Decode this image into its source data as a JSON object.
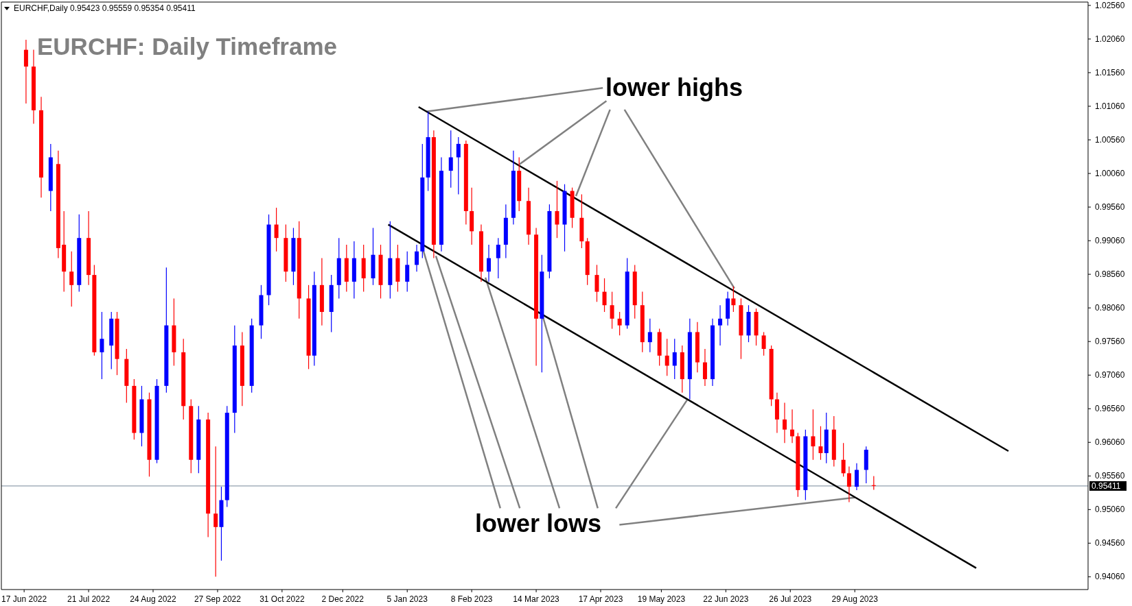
{
  "chart_data": {
    "type": "candlestick",
    "title": "EURCHF: Daily Timeframe",
    "annotations": [
      "EURCHF,Daily 0.95423 0.95559 0.95354 0.95411",
      {
        "text": "lower highs",
        "x": "2023-01-15",
        "y": 1.0098
      },
      {
        "text": "lower lows",
        "x": "2023-08-29",
        "y": 0.9524
      }
    ],
    "colors": [
      "#ff0000",
      "#ff0000",
      "#ff0000",
      "#0000ff",
      "#ff0000",
      "#ff0000",
      "#ff0000",
      "#0000ff",
      "#ff0000",
      "#ff0000",
      "#0000ff",
      "#0000ff",
      "#ff0000",
      "#ff0000",
      "#ff0000",
      "#0000ff",
      "#ff0000",
      "#0000ff",
      "#0000ff",
      "#ff0000",
      "#ff0000",
      "#ff0000",
      "#0000ff",
      "#ff0000",
      "#ff0000",
      "#0000ff",
      "#0000ff",
      "#0000ff",
      "#ff0000",
      "#0000ff",
      "#0000ff",
      "#0000ff",
      "#ff0000",
      "#ff0000",
      "#0000ff",
      "#ff0000",
      "#ff0000",
      "#0000ff",
      "#ff0000",
      "#0000ff",
      "#0000ff",
      "#ff0000",
      "#0000ff",
      "#ff0000",
      "#0000ff",
      "#ff0000",
      "#0000ff",
      "#ff0000",
      "#0000ff",
      "#0000ff",
      "#0000ff",
      "#0000ff",
      "#ff0000",
      "#0000ff",
      "#0000ff",
      "#0000ff",
      "#ff0000",
      "#ff0000",
      "#ff0000",
      "#0000ff",
      "#0000ff",
      "#0000ff",
      "#0000ff",
      "#ff0000",
      "#ff0000",
      "#ff0000",
      "#0000ff",
      "#0000ff",
      "#ff0000",
      "#0000ff",
      "#ff0000",
      "#ff0000",
      "#ff0000",
      "#ff0000",
      "#ff0000",
      "#ff0000",
      "#ff0000",
      "#0000ff",
      "#ff0000",
      "#ff0000",
      "#0000ff",
      "#ff0000",
      "#ff0000",
      "#0000ff",
      "#ff0000",
      "#0000ff",
      "#ff0000",
      "#ff0000",
      "#0000ff",
      "#0000ff",
      "#0000ff",
      "#ff0000",
      "#ff0000",
      "#0000ff",
      "#ff0000",
      "#ff0000",
      "#ff0000",
      "#ff0000",
      "#ff0000",
      "#ff0000",
      "#ff0000",
      "#0000ff",
      "#ff0000",
      "#ff0000",
      "#0000ff",
      "#ff0000",
      "#ff0000",
      "#ff0000",
      "#0000ff",
      "#0000ff",
      "#ff0000"
    ],
    "x": [
      "2022-06-18",
      "2022-06-22",
      "2022-06-26",
      "2022-07-01",
      "2022-07-05",
      "2022-07-08",
      "2022-07-12",
      "2022-07-16",
      "2022-07-21",
      "2022-07-24",
      "2022-07-28",
      "2022-08-02",
      "2022-08-05",
      "2022-08-10",
      "2022-08-14",
      "2022-08-18",
      "2022-08-22",
      "2022-08-26",
      "2022-08-31",
      "2022-09-04",
      "2022-09-09",
      "2022-09-13",
      "2022-09-17",
      "2022-09-22",
      "2022-09-26",
      "2022-09-29",
      "2022-10-02",
      "2022-10-06",
      "2022-10-10",
      "2022-10-15",
      "2022-10-20",
      "2022-10-24",
      "2022-10-28",
      "2022-11-02",
      "2022-11-06",
      "2022-11-09",
      "2022-11-14",
      "2022-11-17",
      "2022-11-21",
      "2022-11-26",
      "2022-11-30",
      "2022-12-04",
      "2022-12-08",
      "2022-12-13",
      "2022-12-18",
      "2022-12-22",
      "2022-12-27",
      "2022-12-31",
      "2023-01-05",
      "2023-01-10",
      "2023-01-13",
      "2023-01-16",
      "2023-01-19",
      "2023-01-23",
      "2023-01-28",
      "2023-02-01",
      "2023-02-05",
      "2023-02-08",
      "2023-02-13",
      "2023-02-17",
      "2023-02-22",
      "2023-02-26",
      "2023-03-02",
      "2023-03-05",
      "2023-03-10",
      "2023-03-14",
      "2023-03-17",
      "2023-03-21",
      "2023-03-25",
      "2023-03-29",
      "2023-04-02",
      "2023-04-07",
      "2023-04-10",
      "2023-04-15",
      "2023-04-19",
      "2023-04-23",
      "2023-04-27",
      "2023-05-01",
      "2023-05-05",
      "2023-05-09",
      "2023-05-13",
      "2023-05-18",
      "2023-05-22",
      "2023-05-26",
      "2023-05-30",
      "2023-06-03",
      "2023-06-07",
      "2023-06-11",
      "2023-06-15",
      "2023-06-19",
      "2023-06-23",
      "2023-06-26",
      "2023-06-30",
      "2023-07-04",
      "2023-07-08",
      "2023-07-12",
      "2023-07-16",
      "2023-07-19",
      "2023-07-23",
      "2023-07-27",
      "2023-07-30",
      "2023-08-03",
      "2023-08-07",
      "2023-08-11",
      "2023-08-14",
      "2023-08-18",
      "2023-08-23",
      "2023-08-26",
      "2023-08-30",
      "2023-09-04",
      "2023-09-08"
    ],
    "ohlc": [
      [
        1.019,
        1.0205,
        1.011,
        1.0165
      ],
      [
        1.0165,
        1.019,
        1.008,
        1.01
      ],
      [
        1.01,
        1.012,
        0.997,
        1.0
      ],
      [
        0.998,
        1.005,
        0.995,
        1.003
      ],
      [
        1.002,
        1.004,
        0.988,
        0.9895
      ],
      [
        0.99,
        0.995,
        0.983,
        0.986
      ],
      [
        0.986,
        0.989,
        0.9808,
        0.984
      ],
      [
        0.984,
        0.9945,
        0.983,
        0.991
      ],
      [
        0.991,
        0.995,
        0.984,
        0.9855
      ],
      [
        0.9855,
        0.987,
        0.9735,
        0.974
      ],
      [
        0.974,
        0.98,
        0.97,
        0.976
      ],
      [
        0.975,
        0.98,
        0.9715,
        0.979
      ],
      [
        0.979,
        0.98,
        0.9706,
        0.973
      ],
      [
        0.973,
        0.9745,
        0.9665,
        0.969
      ],
      [
        0.969,
        0.97,
        0.961,
        0.962
      ],
      [
        0.962,
        0.969,
        0.96,
        0.967
      ],
      [
        0.967,
        0.968,
        0.9555,
        0.958
      ],
      [
        0.958,
        0.97,
        0.9575,
        0.969
      ],
      [
        0.969,
        0.9866,
        0.968,
        0.978
      ],
      [
        0.978,
        0.982,
        0.972,
        0.974
      ],
      [
        0.974,
        0.976,
        0.964,
        0.966
      ],
      [
        0.966,
        0.967,
        0.956,
        0.958
      ],
      [
        0.958,
        0.966,
        0.956,
        0.964
      ],
      [
        0.964,
        0.965,
        0.9465,
        0.95
      ],
      [
        0.95,
        0.96,
        0.9406,
        0.948
      ],
      [
        0.948,
        0.954,
        0.943,
        0.952
      ],
      [
        0.952,
        0.966,
        0.951,
        0.965
      ],
      [
        0.965,
        0.978,
        0.962,
        0.975
      ],
      [
        0.975,
        0.977,
        0.966,
        0.969
      ],
      [
        0.969,
        0.979,
        0.968,
        0.978
      ],
      [
        0.978,
        0.984,
        0.976,
        0.9825
      ],
      [
        0.9825,
        0.9945,
        0.981,
        0.993
      ],
      [
        0.993,
        0.9955,
        0.989,
        0.991
      ],
      [
        0.991,
        0.993,
        0.9845,
        0.986
      ],
      [
        0.986,
        0.9925,
        0.984,
        0.991
      ],
      [
        0.991,
        0.9935,
        0.979,
        0.982
      ],
      [
        0.982,
        0.984,
        0.9715,
        0.9735
      ],
      [
        0.9735,
        0.986,
        0.972,
        0.984
      ],
      [
        0.984,
        0.988,
        0.978,
        0.98
      ],
      [
        0.98,
        0.9855,
        0.977,
        0.984
      ],
      [
        0.984,
        0.991,
        0.982,
        0.988
      ],
      [
        0.988,
        0.99,
        0.983,
        0.9845
      ],
      [
        0.9845,
        0.9905,
        0.982,
        0.988
      ],
      [
        0.988,
        0.99,
        0.983,
        0.985
      ],
      [
        0.985,
        0.9925,
        0.984,
        0.9885
      ],
      [
        0.9885,
        0.99,
        0.982,
        0.984
      ],
      [
        0.984,
        0.9935,
        0.982,
        0.988
      ],
      [
        0.988,
        0.99,
        0.983,
        0.9845
      ],
      [
        0.9845,
        0.989,
        0.983,
        0.987
      ],
      [
        0.987,
        0.99,
        0.986,
        0.989
      ],
      [
        0.989,
        1.005,
        0.988,
        1.0
      ],
      [
        1.0,
        1.0098,
        0.998,
        1.006
      ],
      [
        1.006,
        1.007,
        0.988,
        0.99
      ],
      [
        0.99,
        1.003,
        0.989,
        1.001
      ],
      [
        1.001,
        1.007,
        0.9985,
        1.003
      ],
      [
        1.003,
        1.006,
        0.9975,
        1.005
      ],
      [
        1.005,
        1.0055,
        0.993,
        0.995
      ],
      [
        0.995,
        0.9985,
        0.99,
        0.992
      ],
      [
        0.992,
        0.993,
        0.9845,
        0.986
      ],
      [
        0.986,
        0.99,
        0.9845,
        0.988
      ],
      [
        0.988,
        0.991,
        0.985,
        0.99
      ],
      [
        0.99,
        0.996,
        0.988,
        0.994
      ],
      [
        0.994,
        1.004,
        0.993,
        1.001
      ],
      [
        1.001,
        1.003,
        0.995,
        0.9965
      ],
      [
        0.9965,
        0.9985,
        0.99,
        0.9915
      ],
      [
        0.9915,
        0.9925,
        0.972,
        0.979
      ],
      [
        0.979,
        0.9885,
        0.971,
        0.986
      ],
      [
        0.986,
        0.996,
        0.985,
        0.995
      ],
      [
        0.995,
        0.9995,
        0.991,
        0.993
      ],
      [
        0.993,
        0.999,
        0.989,
        0.998
      ],
      [
        0.998,
        0.9985,
        0.9925,
        0.994
      ],
      [
        0.994,
        0.9975,
        0.9895,
        0.9905
      ],
      [
        0.9905,
        0.991,
        0.984,
        0.9855
      ],
      [
        0.9855,
        0.987,
        0.9815,
        0.983
      ],
      [
        0.983,
        0.985,
        0.98,
        0.981
      ],
      [
        0.981,
        0.983,
        0.9775,
        0.979
      ],
      [
        0.979,
        0.98,
        0.9765,
        0.978
      ],
      [
        0.978,
        0.988,
        0.9775,
        0.986
      ],
      [
        0.986,
        0.987,
        0.979,
        0.981
      ],
      [
        0.981,
        0.983,
        0.974,
        0.9755
      ],
      [
        0.9755,
        0.979,
        0.974,
        0.977
      ],
      [
        0.977,
        0.9775,
        0.972,
        0.9735
      ],
      [
        0.9735,
        0.976,
        0.9705,
        0.972
      ],
      [
        0.972,
        0.976,
        0.97,
        0.974
      ],
      [
        0.974,
        0.975,
        0.968,
        0.97
      ],
      [
        0.97,
        0.979,
        0.967,
        0.977
      ],
      [
        0.977,
        0.9785,
        0.971,
        0.9725
      ],
      [
        0.9725,
        0.9745,
        0.969,
        0.97
      ],
      [
        0.97,
        0.979,
        0.969,
        0.978
      ],
      [
        0.978,
        0.981,
        0.975,
        0.979
      ],
      [
        0.979,
        0.983,
        0.978,
        0.982
      ],
      [
        0.982,
        0.9838,
        0.98,
        0.981
      ],
      [
        0.981,
        0.982,
        0.973,
        0.9765
      ],
      [
        0.9765,
        0.981,
        0.9755,
        0.98
      ],
      [
        0.98,
        0.9805,
        0.975,
        0.9765
      ],
      [
        0.9765,
        0.977,
        0.9735,
        0.9745
      ],
      [
        0.9745,
        0.975,
        0.966,
        0.967
      ],
      [
        0.967,
        0.968,
        0.962,
        0.964
      ],
      [
        0.964,
        0.9665,
        0.9605,
        0.9625
      ],
      [
        0.9625,
        0.9655,
        0.9605,
        0.9615
      ],
      [
        0.9615,
        0.962,
        0.9525,
        0.9535
      ],
      [
        0.9535,
        0.9625,
        0.952,
        0.9615
      ],
      [
        0.9615,
        0.9655,
        0.958,
        0.96
      ],
      [
        0.96,
        0.963,
        0.958,
        0.959
      ],
      [
        0.959,
        0.965,
        0.9575,
        0.9625
      ],
      [
        0.9625,
        0.9645,
        0.957,
        0.958
      ],
      [
        0.958,
        0.9605,
        0.9555,
        0.956
      ],
      [
        0.956,
        0.957,
        0.9517,
        0.954
      ],
      [
        0.954,
        0.9575,
        0.9535,
        0.9565
      ],
      [
        0.9565,
        0.96,
        0.9545,
        0.9595
      ],
      [
        0.95423,
        0.95559,
        0.95354,
        0.95411
      ]
    ],
    "series": [
      {
        "type": "line",
        "color": "#000000",
        "x": [
          "2023-01-11",
          "2023-11-18"
        ],
        "values": [
          1.0105,
          0.9593
        ]
      },
      {
        "type": "line",
        "color": "#000000",
        "x": [
          "2022-12-26",
          "2023-11-01"
        ],
        "values": [
          0.993,
          0.9419
        ]
      }
    ],
    "ref_lines": [
      {
        "axis": "y",
        "value": 0.95411,
        "label": "0.95411",
        "color": "#778899"
      }
    ],
    "xlim": [
      "2022-06-05",
      "2023-12-30"
    ],
    "xticks": [
      {
        "value": "2022-06-17",
        "label": "17 Jun 2022"
      },
      {
        "value": "2022-07-21",
        "label": "21 Jul 2022"
      },
      {
        "value": "2022-08-24",
        "label": "24 Aug 2022"
      },
      {
        "value": "2022-09-27",
        "label": "27 Sep 2022"
      },
      {
        "value": "2022-10-31",
        "label": "31 Oct 2022"
      },
      {
        "value": "2022-12-02",
        "label": "2 Dec 2022"
      },
      {
        "value": "2023-01-05",
        "label": "5 Jan 2023"
      },
      {
        "value": "2023-02-08",
        "label": "8 Feb 2023"
      },
      {
        "value": "2023-03-14",
        "label": "14 Mar 2023"
      },
      {
        "value": "2023-04-17",
        "label": "17 Apr 2023"
      },
      {
        "value": "2023-05-19",
        "label": "19 May 2023"
      },
      {
        "value": "2023-06-22",
        "label": "22 Jun 2023"
      },
      {
        "value": "2023-07-26",
        "label": "26 Jul 2023"
      },
      {
        "value": "2023-08-29",
        "label": "29 Aug 2023"
      }
    ],
    "ylim": [
      0.9387,
      1.0261
    ],
    "yticks": [
      {
        "value": 1.0256,
        "label": "1.02560"
      },
      {
        "value": 1.0206,
        "label": "1.02060"
      },
      {
        "value": 1.0156,
        "label": "1.01560"
      },
      {
        "value": 1.0106,
        "label": "1.01060"
      },
      {
        "value": 1.0056,
        "label": "1.00560"
      },
      {
        "value": 1.0006,
        "label": "1.00060"
      },
      {
        "value": 0.9956,
        "label": "0.99560"
      },
      {
        "value": 0.9906,
        "label": "0.99060"
      },
      {
        "value": 0.9856,
        "label": "0.98560"
      },
      {
        "value": 0.9806,
        "label": "0.98060"
      },
      {
        "value": 0.9756,
        "label": "0.97560"
      },
      {
        "value": 0.9706,
        "label": "0.97060"
      },
      {
        "value": 0.9656,
        "label": "0.96560"
      },
      {
        "value": 0.9606,
        "label": "0.96060"
      },
      {
        "value": 0.9556,
        "label": "0.95560"
      },
      {
        "value": 0.9506,
        "label": "0.95060"
      },
      {
        "value": 0.9456,
        "label": "0.94560"
      },
      {
        "value": 0.9406,
        "label": "0.94060"
      }
    ]
  }
}
